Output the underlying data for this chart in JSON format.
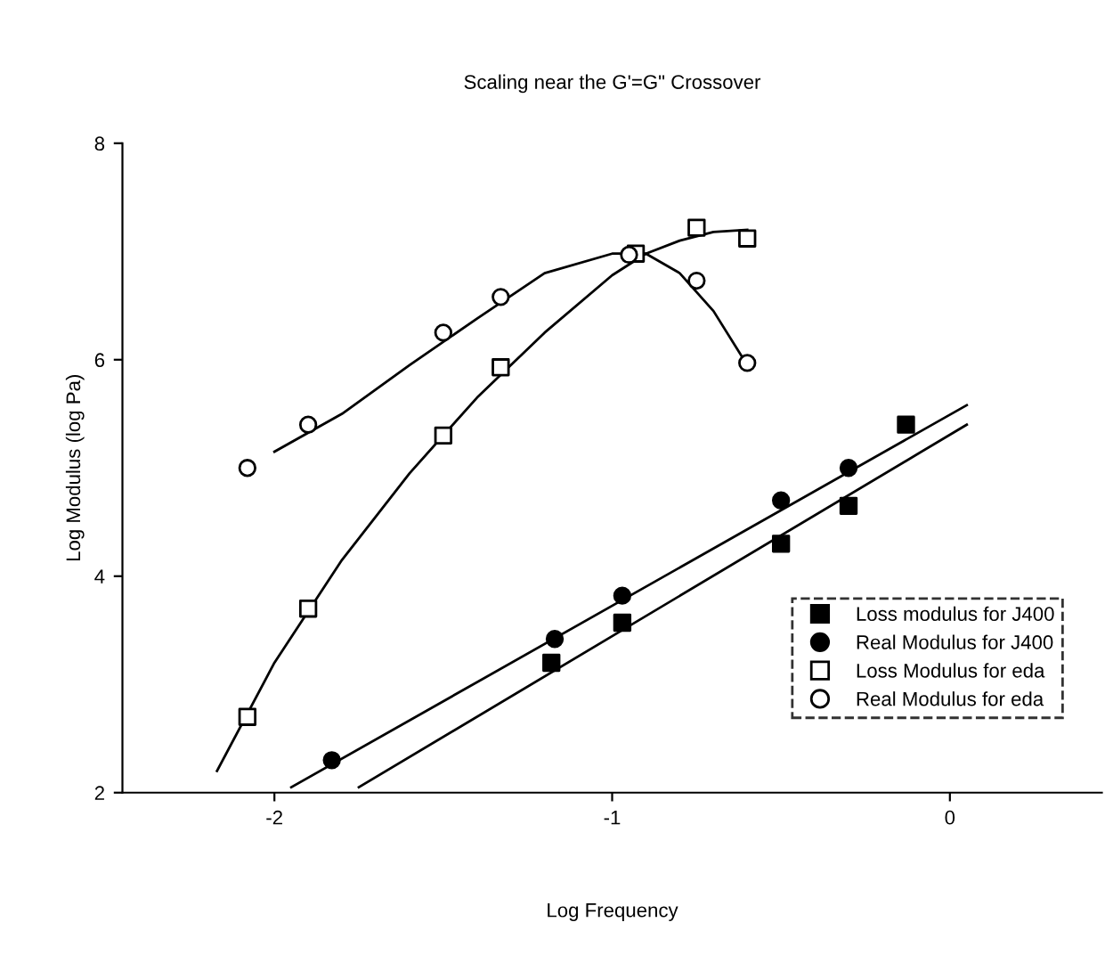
{
  "chart_data": {
    "type": "scatter",
    "title": "Scaling near the G'=G\" Crossover",
    "xlabel": "Log Frequency",
    "ylabel": "Log Modulus (log Pa)",
    "xlim": [
      -2.45,
      0.45
    ],
    "ylim": [
      2,
      8
    ],
    "xticks": [
      -2,
      -1,
      0
    ],
    "yticks": [
      2,
      4,
      6,
      8
    ],
    "grid": false,
    "legend": "bottom right",
    "series": [
      {
        "name": "Loss modulus for J400",
        "color": "#000000",
        "marker": "square",
        "x": [
          -1.18,
          -0.97,
          -0.5,
          -0.3,
          -0.13
        ],
        "values": [
          3.2,
          3.57,
          4.3,
          4.65,
          5.4
        ]
      },
      {
        "name": "Real Modulus for J400",
        "color": "#000000",
        "marker": "circle",
        "x": [
          -1.83,
          -1.17,
          -0.97,
          -0.5,
          -0.3
        ],
        "values": [
          2.3,
          3.42,
          3.82,
          4.7,
          5.0
        ]
      },
      {
        "name": "Loss Modulus for eda",
        "color": "#ffffff",
        "marker": "square",
        "x": [
          -2.08,
          -1.9,
          -1.5,
          -1.33,
          -0.93,
          -0.75,
          -0.6
        ],
        "values": [
          2.7,
          3.7,
          5.3,
          5.93,
          6.98,
          7.22,
          7.12
        ]
      },
      {
        "name": "Real Modulus for eda",
        "color": "#ffffff",
        "marker": "circle",
        "x": [
          -2.08,
          -1.9,
          -1.5,
          -1.33,
          -0.95,
          -0.75,
          -0.6
        ],
        "values": [
          5.0,
          5.4,
          6.25,
          6.58,
          6.97,
          6.73,
          5.97
        ]
      },
      {
        "type": "line",
        "color": "#000000",
        "x": [
          -2.17,
          -2.0,
          -1.8,
          -1.6,
          -1.4,
          -1.2,
          -1.0,
          -0.9,
          -0.8,
          -0.7,
          -0.6
        ],
        "values": [
          2.2,
          3.2,
          4.15,
          4.95,
          5.65,
          6.25,
          6.78,
          6.98,
          7.1,
          7.18,
          7.2
        ]
      },
      {
        "type": "line",
        "color": "#000000",
        "x": [
          -2.0,
          -1.8,
          -1.6,
          -1.4,
          -1.2,
          -1.0,
          -0.9,
          -0.8,
          -0.7,
          -0.6
        ],
        "values": [
          5.15,
          5.5,
          5.95,
          6.38,
          6.8,
          6.98,
          6.98,
          6.8,
          6.45,
          5.95
        ]
      },
      {
        "type": "line",
        "color": "#000000",
        "x": [
          -1.95,
          0.05
        ],
        "values": [
          2.05,
          5.58
        ]
      },
      {
        "type": "line",
        "color": "#000000",
        "x": [
          -1.75,
          0.05
        ],
        "values": [
          2.05,
          5.4
        ]
      }
    ]
  }
}
